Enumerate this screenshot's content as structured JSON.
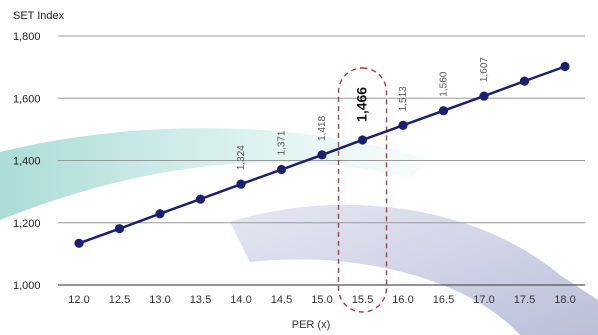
{
  "chart_data": {
    "type": "line",
    "title": "",
    "xlabel": "PER (x)",
    "ylabel": "SET Index",
    "ylim": [
      1000,
      1800
    ],
    "y_ticks": [
      "1,000",
      "1,200",
      "1,400",
      "1,600",
      "1,800"
    ],
    "x_ticks": [
      "12.0",
      "12.5",
      "13.0",
      "13.5",
      "14.0",
      "14.5",
      "15.0",
      "15.5",
      "16.0",
      "16.5",
      "17.0",
      "17.5",
      "18.0"
    ],
    "x": [
      12.0,
      12.5,
      13.0,
      13.5,
      14.0,
      14.5,
      15.0,
      15.5,
      16.0,
      16.5,
      17.0,
      17.5,
      18.0
    ],
    "series": [
      {
        "values": [
          1134,
          1181,
          1229,
          1276,
          1324,
          1371,
          1418,
          1466,
          1513,
          1560,
          1607,
          1655,
          1702
        ]
      }
    ],
    "data_labels": [
      {
        "x": 14.0,
        "text": "1,324"
      },
      {
        "x": 14.5,
        "text": "1,371"
      },
      {
        "x": 15.0,
        "text": "1,418"
      },
      {
        "x": 15.5,
        "text": "1,466",
        "emphasis": true
      },
      {
        "x": 16.0,
        "text": "1,513"
      },
      {
        "x": 16.5,
        "text": "1,560"
      },
      {
        "x": 17.0,
        "text": "1,607"
      }
    ],
    "highlight_x": 15.5,
    "grid": true,
    "colors": {
      "line": "#1b1f6f",
      "marker": "#1b1f6f",
      "grid": "#9a9a9a",
      "highlight": "#b23a3a",
      "swoosh_teal": "#bfe3df",
      "swoosh_blue": "#c8cde3"
    }
  }
}
